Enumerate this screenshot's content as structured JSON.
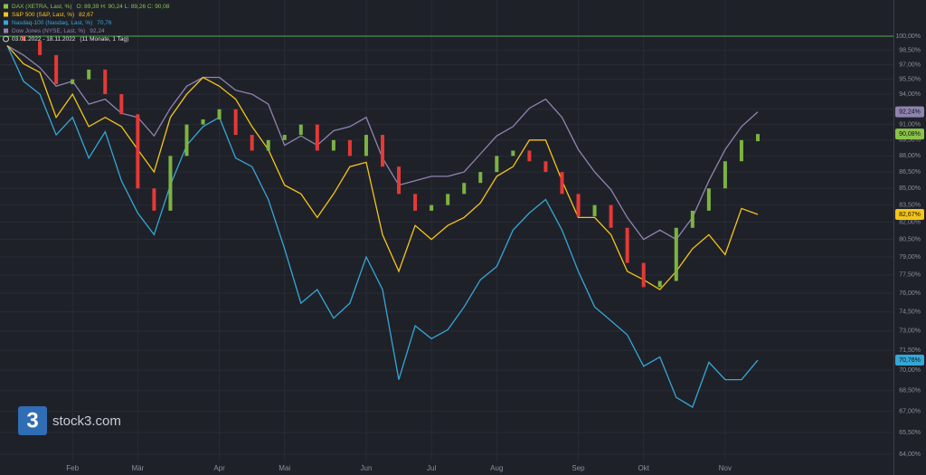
{
  "chart_data": {
    "type": "line",
    "period": "03.01.2022 - 18.11.2022",
    "period_note": "(11 Monate, 1 Tag)",
    "watermark_icon": "3",
    "watermark": "stock3.com",
    "log_scale": true,
    "grid": true,
    "reference_line": 100,
    "reference_color": "#4caf50",
    "categories": [
      null,
      null,
      null,
      null,
      "Feb",
      null,
      null,
      null,
      "Mär",
      null,
      null,
      null,
      null,
      "Apr",
      null,
      null,
      null,
      "Mai",
      null,
      null,
      null,
      null,
      "Jun",
      null,
      null,
      null,
      "Jul",
      null,
      null,
      null,
      "Aug",
      null,
      null,
      null,
      null,
      "Sep",
      null,
      null,
      null,
      "Okt",
      null,
      null,
      null,
      null,
      "Nov",
      null,
      null
    ],
    "ylim": [
      64,
      100
    ],
    "yticks": [
      {
        "value": 64,
        "label": "64,00%"
      },
      {
        "value": 65.5,
        "label": "65,50%"
      },
      {
        "value": 67,
        "label": "67,00%"
      },
      {
        "value": 68.5,
        "label": "68,50%"
      },
      {
        "value": 70,
        "label": "70,00%"
      },
      {
        "value": 71.5,
        "label": "71,50%"
      },
      {
        "value": 73,
        "label": "73,00%"
      },
      {
        "value": 74.5,
        "label": "74,50%"
      },
      {
        "value": 76,
        "label": "76,00%"
      },
      {
        "value": 77.5,
        "label": "77,50%"
      },
      {
        "value": 79,
        "label": "79,00%"
      },
      {
        "value": 80.5,
        "label": "80,50%"
      },
      {
        "value": 82,
        "label": "82,00%"
      },
      {
        "value": 83.5,
        "label": "83,50%"
      },
      {
        "value": 85,
        "label": "85,00%"
      },
      {
        "value": 86.5,
        "label": "86,50%"
      },
      {
        "value": 88,
        "label": "88,00%"
      },
      {
        "value": 89.5,
        "label": "89,50%"
      },
      {
        "value": 91,
        "label": "91,00%"
      },
      {
        "value": 92.5,
        "label": "92,50%"
      },
      {
        "value": 94,
        "label": "94,00%"
      },
      {
        "value": 95.5,
        "label": "95,50%"
      },
      {
        "value": 97,
        "label": "97,00%"
      },
      {
        "value": 98.5,
        "label": "98,50%"
      },
      {
        "value": 100,
        "label": "100,00%"
      }
    ],
    "series": [
      {
        "name": "DAX (XETRA, Last, %)",
        "kind": "candlestick",
        "legend_value": "O: 89,39  H: 90,24  L: 89,26  C: 90,08",
        "tag_label": "90,08%",
        "color": "#7cb342",
        "down_color": "#e53935",
        "legend_color": "#8bc34a",
        "open": [
          100,
          100,
          99.5,
          98,
          95,
          95.5,
          96.5,
          94,
          92,
          85,
          83,
          88,
          91,
          91.5,
          92.5,
          90,
          88.5,
          89.5,
          90,
          91,
          88.5,
          89.5,
          88,
          90,
          87,
          84.5,
          83,
          83.5,
          84.5,
          85.5,
          86.5,
          88,
          88.5,
          87.5,
          86.5,
          84.5,
          82.5,
          83.5,
          81.5,
          78.5,
          76.5,
          77,
          81.5,
          83,
          85,
          87.5,
          89.39
        ],
        "close": [
          100,
          99.5,
          98,
          95,
          95.5,
          96.5,
          94,
          92,
          85,
          83,
          88,
          91,
          91.5,
          92.5,
          90,
          88.5,
          89.5,
          90,
          91,
          88.5,
          89.5,
          88,
          90,
          87,
          84.5,
          83,
          83.5,
          84.5,
          85.5,
          86.5,
          88,
          88.5,
          87.5,
          86.5,
          84.5,
          82.5,
          83.5,
          81.5,
          78.5,
          76.5,
          77,
          81.5,
          83,
          85,
          87.5,
          89.5,
          90.08
        ]
      },
      {
        "name": "S&P 500 (S&P, Last, %)",
        "legend_value": "82,67",
        "tag_label": "82,67%",
        "color": "#f5c518",
        "values": [
          99,
          97.1,
          96.2,
          91.7,
          94,
          90.8,
          91.7,
          90.8,
          88.6,
          86.5,
          91.7,
          94,
          95.7,
          94.8,
          93.5,
          90.8,
          88.6,
          85.3,
          84.5,
          82.4,
          84.5,
          87,
          87.4,
          80.9,
          77.8,
          81.7,
          80.5,
          81.7,
          82.4,
          83.7,
          86.1,
          87,
          89.5,
          89.5,
          85.7,
          82.4,
          82.4,
          80.9,
          77.8,
          77.1,
          76.3,
          77.8,
          79.7,
          80.9,
          79.2,
          83.2,
          82.67
        ]
      },
      {
        "name": "Nasdaq-100 (Nasdaq, Last, %)",
        "legend_value": "70,76",
        "tag_label": "70,76%",
        "color": "#35a7d6",
        "values": [
          99,
          95.3,
          94,
          90,
          91.7,
          87.8,
          90.3,
          85.7,
          82.8,
          80.9,
          85.3,
          89,
          90.8,
          91.7,
          87.8,
          87,
          84,
          79.7,
          75.2,
          76.3,
          74,
          75.2,
          79,
          76.3,
          69.3,
          73.4,
          72.4,
          73.1,
          74.9,
          77.1,
          78.2,
          81.3,
          82.8,
          84,
          81.3,
          77.8,
          74.9,
          73.8,
          72.7,
          70.3,
          71,
          68,
          67.3,
          70.6,
          69.3,
          69.3,
          70.76
        ]
      },
      {
        "name": "Dow Jones (NYSE, Last, %)",
        "legend_value": "92,24",
        "tag_label": "92,24%",
        "color": "#8f84b0",
        "values": [
          99,
          98,
          96.7,
          94.8,
          95.3,
          93,
          93.5,
          92.1,
          91.7,
          89.9,
          92.6,
          94.8,
          95.7,
          95.7,
          94.4,
          94,
          93,
          89,
          89.9,
          89,
          90.4,
          90.8,
          91.7,
          87.8,
          85.3,
          85.7,
          86.1,
          86.1,
          86.5,
          88.2,
          89.9,
          90.8,
          92.6,
          93.5,
          91.7,
          88.6,
          86.5,
          84.9,
          82.4,
          80.5,
          81.3,
          80.5,
          82.4,
          85.7,
          88.6,
          90.8,
          92.24
        ]
      }
    ]
  }
}
